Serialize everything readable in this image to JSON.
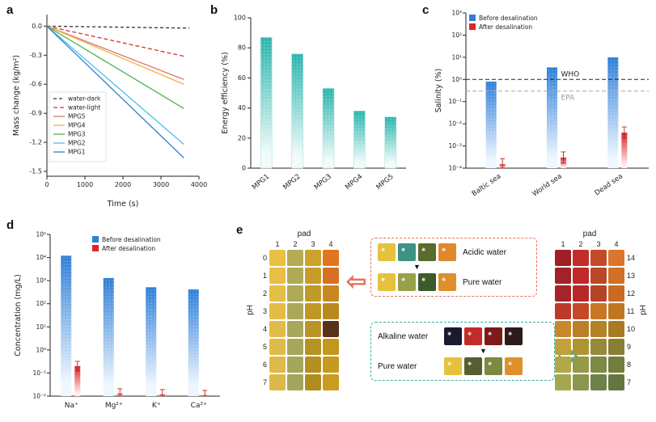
{
  "panels": {
    "a": {
      "label": "a"
    },
    "b": {
      "label": "b"
    },
    "c": {
      "label": "c"
    },
    "d": {
      "label": "d"
    },
    "e": {
      "label": "e"
    }
  },
  "chart_data": [
    {
      "id": "a",
      "type": "line",
      "xlabel": "Time (s)",
      "ylabel": "Mass change (kg/m²)",
      "xlim": [
        0,
        4000
      ],
      "ylim": [
        -1.55,
        0.12
      ],
      "xticks": [
        {
          "v": 0,
          "label": "0"
        },
        {
          "v": 1000,
          "label": "1000"
        },
        {
          "v": 2000,
          "label": "2000"
        },
        {
          "v": 3000,
          "label": "3000"
        },
        {
          "v": 4000,
          "label": "4000"
        }
      ],
      "yticks": [
        {
          "v": 0,
          "label": "0.0"
        },
        {
          "v": -0.3,
          "label": "-0.3"
        },
        {
          "v": -0.6,
          "label": "-0.6"
        },
        {
          "v": -0.9,
          "label": "-0.9"
        },
        {
          "v": -1.2,
          "label": "-1.2"
        },
        {
          "v": -1.5,
          "label": "-1.5"
        }
      ],
      "series": [
        {
          "name": "water-dark",
          "color": "#333333",
          "dash": "4 3",
          "x": [
            0,
            3750
          ],
          "y": [
            0,
            -0.02
          ]
        },
        {
          "name": "water-light",
          "color": "#d93025",
          "dash": "5 3",
          "x": [
            0,
            3600
          ],
          "y": [
            0,
            -0.31
          ]
        },
        {
          "name": "MPG5",
          "color": "#e4756b",
          "dash": "",
          "x": [
            0,
            3600
          ],
          "y": [
            0,
            -0.55
          ]
        },
        {
          "name": "MPG4",
          "color": "#f2b23e",
          "dash": "",
          "x": [
            0,
            3600
          ],
          "y": [
            0,
            -0.6
          ]
        },
        {
          "name": "MPG3",
          "color": "#4caf50",
          "dash": "",
          "x": [
            0,
            3600
          ],
          "y": [
            0,
            -0.85
          ]
        },
        {
          "name": "MPG2",
          "color": "#49c0e8",
          "dash": "",
          "x": [
            0,
            3600
          ],
          "y": [
            0,
            -1.22
          ]
        },
        {
          "name": "MPG1",
          "color": "#2f7fd8",
          "dash": "",
          "x": [
            0,
            3600
          ],
          "y": [
            0,
            -1.36
          ]
        }
      ]
    },
    {
      "id": "b",
      "type": "bar",
      "ylabel": "Energy efficiency (%)",
      "categories": [
        "MPG1",
        "MPG2",
        "MPG3",
        "MPG4",
        "MPG5"
      ],
      "values": [
        87,
        76,
        53,
        38,
        34
      ],
      "ylim": [
        0,
        100
      ],
      "yticks": [
        {
          "v": 0,
          "label": "0"
        },
        {
          "v": 20,
          "label": "20"
        },
        {
          "v": 40,
          "label": "40"
        },
        {
          "v": 60,
          "label": "60"
        },
        {
          "v": 80,
          "label": "80"
        },
        {
          "v": 100,
          "label": "100"
        }
      ],
      "bar_top_color": "#2bb5ad",
      "bar_bottom_color": "#f2fbfa"
    },
    {
      "id": "c",
      "type": "bar",
      "scale": "log",
      "ylabel": "Salinity (%)",
      "categories": [
        "Baltic sea",
        "World sea",
        "Dead sea"
      ],
      "ylim": [
        0.0001,
        1000
      ],
      "yticks": [
        {
          "e": 3,
          "label": "10³"
        },
        {
          "e": 2,
          "label": "10²"
        },
        {
          "e": 1,
          "label": "10¹"
        },
        {
          "e": 0,
          "label": "10⁰"
        },
        {
          "e": -1,
          "label": "10⁻¹"
        },
        {
          "e": -2,
          "label": "10⁻²"
        },
        {
          "e": -3,
          "label": "10⁻³"
        },
        {
          "e": -4,
          "label": "10⁻⁴"
        }
      ],
      "series": [
        {
          "name": "Before desalination",
          "color_top": "#2f7fd8",
          "color_bottom": "#eef6ff",
          "values": [
            0.8,
            3.5,
            10
          ]
        },
        {
          "name": "After desalination",
          "color_top": "#e02424",
          "color_bottom": "#ffecec",
          "values": [
            0.00015,
            0.0003,
            0.004
          ],
          "error_factor": 1.8
        }
      ],
      "reference_lines": [
        {
          "label": "WHO",
          "value": 1.0,
          "color": "#222222",
          "label_color": "#222222",
          "side": "above"
        },
        {
          "label": "EPA",
          "value": 0.3,
          "color": "#aaaaaa",
          "label_color": "#999999",
          "side": "below"
        }
      ],
      "rotate_labels": true
    },
    {
      "id": "d",
      "type": "bar",
      "scale": "log",
      "ylabel": "Concentration (mg/L)",
      "categories": [
        "Na⁺",
        "Mg²⁺",
        "K⁺",
        "Ca²⁺"
      ],
      "ylim": [
        0.01,
        100000
      ],
      "yticks": [
        {
          "e": 5,
          "label": "10⁵"
        },
        {
          "e": 4,
          "label": "10⁴"
        },
        {
          "e": 3,
          "label": "10³"
        },
        {
          "e": 2,
          "label": "10²"
        },
        {
          "e": 1,
          "label": "10¹"
        },
        {
          "e": 0,
          "label": "10⁰"
        },
        {
          "e": -1,
          "label": "10⁻¹"
        },
        {
          "e": -2,
          "label": "10⁻²"
        }
      ],
      "series": [
        {
          "name": "Before desalination",
          "color_top": "#2f7fd8",
          "color_bottom": "#eef6ff",
          "values": [
            12000,
            1300,
            520,
            420
          ]
        },
        {
          "name": "After desalination",
          "color_top": "#e02424",
          "color_bottom": "#ffecec",
          "values": [
            0.2,
            0.013,
            0.012,
            0.011
          ],
          "error_factor": 1.6
        }
      ],
      "reference_lines": [],
      "rotate_labels": false
    }
  ],
  "panel_e": {
    "left_grid": {
      "pad_header": "pad",
      "cols": [
        "1",
        "2",
        "3",
        "4"
      ],
      "axis_label": "pH",
      "row_labels": [
        "0",
        "1",
        "2",
        "3",
        "4",
        "5",
        "6",
        "7"
      ],
      "rows": [
        [
          "#e9c043",
          "#b4ac55",
          "#cda22c",
          "#e2761f"
        ],
        [
          "#e7bf45",
          "#b0aa56",
          "#c79d2a",
          "#d86f22"
        ],
        [
          "#e5be46",
          "#adaa58",
          "#c29a28",
          "#c9881f"
        ],
        [
          "#e3bd47",
          "#aaa959",
          "#be9726",
          "#b8891f"
        ],
        [
          "#e1bc48",
          "#a8a85a",
          "#ba9424",
          "#57311a"
        ],
        [
          "#dfbb49",
          "#a6a75b",
          "#b79222",
          "#c4961d"
        ],
        [
          "#ddba4a",
          "#a4a65c",
          "#b39020",
          "#c8991f"
        ],
        [
          "#dbb94b",
          "#a2a55d",
          "#b08e1e",
          "#cc9c21"
        ]
      ]
    },
    "right_grid": {
      "pad_header": "pad",
      "cols": [
        "1",
        "2",
        "3",
        "4"
      ],
      "axis_label": "pH",
      "row_labels": [
        "14",
        "13",
        "12",
        "11",
        "10",
        "9",
        "8",
        "7"
      ],
      "rows": [
        [
          "#9e2026",
          "#c22c2b",
          "#c04c2a",
          "#d9762b"
        ],
        [
          "#a22227",
          "#bd2a29",
          "#ba4828",
          "#d17026"
        ],
        [
          "#a62428",
          "#b82827",
          "#b44426",
          "#c96a22"
        ],
        [
          "#bc3a2c",
          "#c24a28",
          "#c87628",
          "#bf7820"
        ],
        [
          "#ca882c",
          "#bc7e28",
          "#b48226",
          "#aa7a22"
        ],
        [
          "#c4a038",
          "#ac9432",
          "#968a38",
          "#8a7e30"
        ],
        [
          "#b2a848",
          "#96984a",
          "#7c8a46",
          "#727e3e"
        ],
        [
          "#a6a650",
          "#8c9650",
          "#6c8246",
          "#667640"
        ]
      ]
    },
    "acid_inset": {
      "border_color": "#e8705a",
      "rows": [
        {
          "label": "Acidic water",
          "pads": [
            "#e6c23c",
            "#3f9184",
            "#5a6b2e",
            "#df892c"
          ]
        },
        {
          "label": "Pure water",
          "pads": [
            "#e6c23c",
            "#99a04a",
            "#3f5a2a",
            "#df902c"
          ]
        }
      ]
    },
    "alk_inset": {
      "border_color": "#35b3a2",
      "rows": [
        {
          "label": "Alkaline water",
          "pads": [
            "#191a2e",
            "#c22b28",
            "#7d1a1a",
            "#2d1a1a"
          ]
        },
        {
          "label": "Pure water",
          "pads": [
            "#e6c23c",
            "#555e2e",
            "#7d8940",
            "#df902c"
          ]
        }
      ]
    },
    "down_triangle": "▼",
    "left_arrow": "⇦",
    "right_arrow": "⇨"
  }
}
